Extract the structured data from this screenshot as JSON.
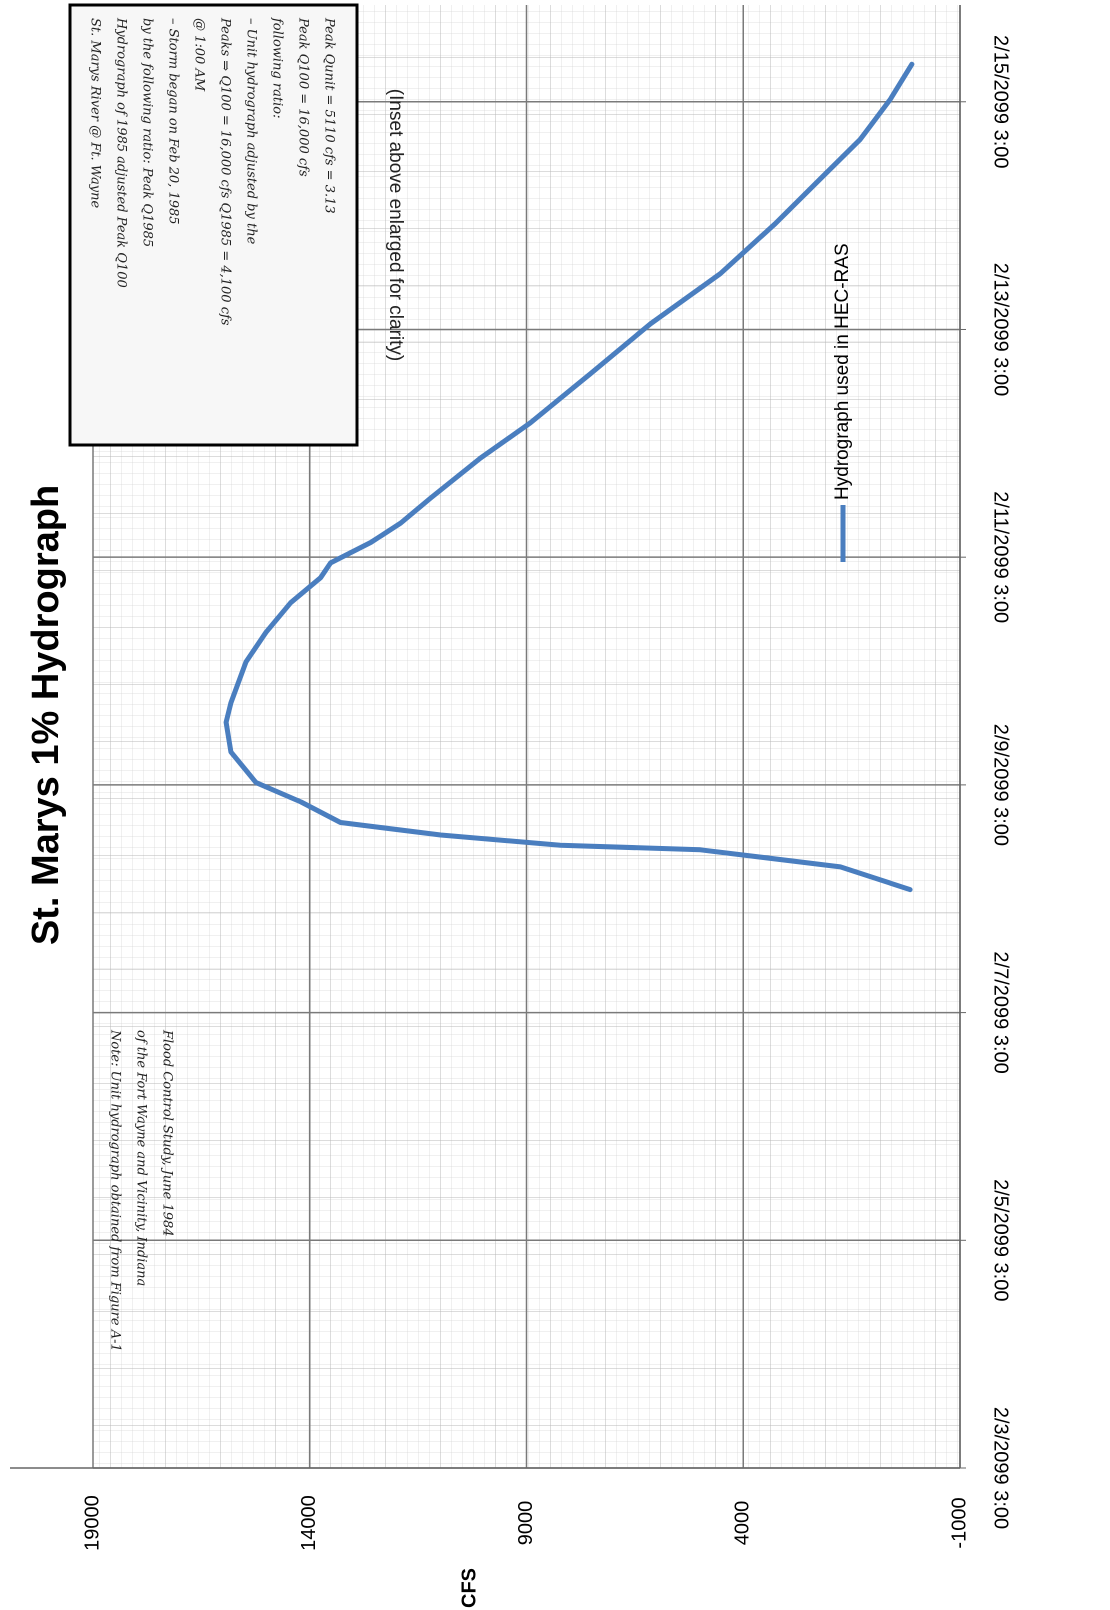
{
  "chart_data": {
    "type": "line",
    "title": "St. Marys 1% Hydrograph",
    "y_label": "CFS",
    "ylim": [
      -1000,
      19000
    ],
    "yticks": [
      -1000,
      4000,
      9000,
      14000,
      19000
    ],
    "xlim": [
      0,
      12.85
    ],
    "xticks": [
      {
        "value": 0,
        "label": "2/3/2099 3:00"
      },
      {
        "value": 2,
        "label": "2/5/2099 3:00"
      },
      {
        "value": 4,
        "label": "2/7/2099 3:00"
      },
      {
        "value": 6,
        "label": "2/9/2099 3:00"
      },
      {
        "value": 8,
        "label": "2/11/2099 3:00"
      },
      {
        "value": 10,
        "label": "2/13/2099 3:00"
      },
      {
        "value": 12,
        "label": "2/15/2099 3:00"
      }
    ],
    "grid": true,
    "x": [
      5.08,
      5.28,
      5.43,
      5.47,
      5.56,
      5.67,
      5.85,
      6.02,
      6.29,
      6.55,
      6.72,
      7.08,
      7.34,
      7.6,
      7.82,
      7.95,
      8.13,
      8.3,
      8.52,
      8.87,
      9.18,
      9.61,
      10.05,
      10.49,
      10.93,
      11.32,
      11.67,
      12.02,
      12.33
    ],
    "series": [
      {
        "name": "Hydrograph used in HEC-RAS",
        "color": "#4a7ebf",
        "values": [
          150,
          1760,
          4990,
          8220,
          10980,
          13290,
          14200,
          15240,
          15820,
          15930,
          15820,
          15470,
          15010,
          14440,
          13750,
          13520,
          12590,
          11900,
          11210,
          10060,
          8910,
          7530,
          6140,
          4530,
          3260,
          2230,
          1300,
          610,
          110
        ]
      }
    ],
    "annotations": {
      "inset_caption": "(Inset above enlarged for clarity)",
      "inset": [
        "St. Marys River @ Ft. Wayne",
        "Hydrograph of 1985 adjusted   Peak Q100",
        "by the following ratio:   Peak Q1985",
        "– Storm began on Feb 20, 1985",
        "@ 1:00 AM",
        "Peaks ⇒ Q100 = 16,000 cfs    Q1985 = 4,100 cfs",
        "– Unit hydrograph adjusted by the",
        "following ratio:",
        "Peak Q100 = 16,000 cfs",
        "Peak Qunit = 5110 cfs  = 3.13"
      ],
      "note": [
        "Note: Unit hydrograph obtained from Figure A-1",
        "of the Fort Wayne and Vicinity, Indiana",
        "Flood Control Study, June 1984"
      ]
    }
  }
}
